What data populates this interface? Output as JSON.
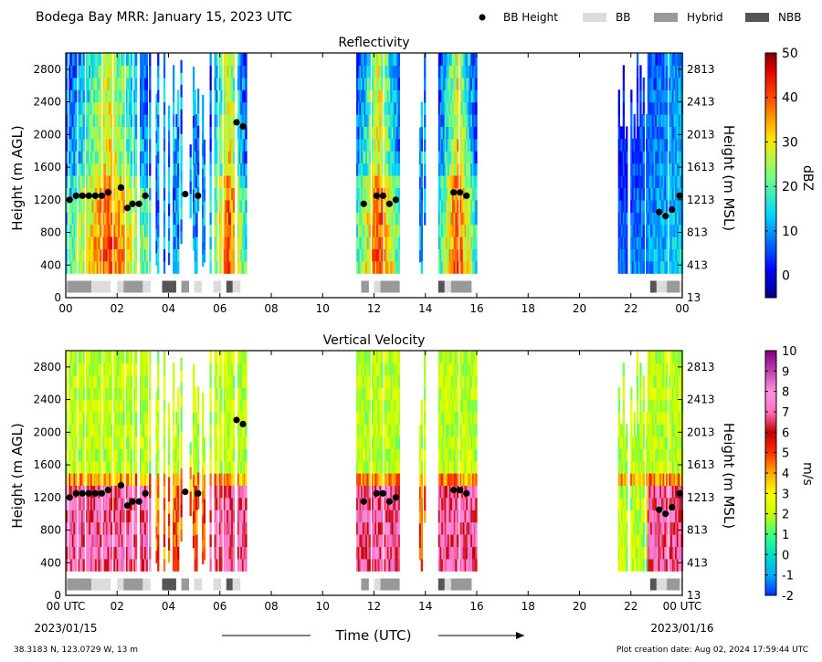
{
  "figure": {
    "title": "Bodega Bay MRR:  January 15, 2023 UTC",
    "xlabel": "Time (UTC)",
    "start_date": "2023/01/15",
    "end_date": "2023/01/16",
    "location": "38.3183 N, 123.0729 W, 13 m",
    "creation": "Plot creation date: Aug 02, 2024 17:59:44 UTC",
    "legend": [
      {
        "label": "BB Height",
        "kind": "dot",
        "color": "#000000"
      },
      {
        "label": "BB",
        "kind": "rect",
        "color": "#dcdcdc"
      },
      {
        "label": "Hybrid",
        "kind": "rect",
        "color": "#999999"
      },
      {
        "label": "NBB",
        "kind": "rect",
        "color": "#555555"
      }
    ]
  },
  "chart_data": [
    {
      "type": "heatmap",
      "title": "Reflectivity",
      "ylabel": "Height (m AGL)",
      "ylabel_right": "Height (m MSL)",
      "colorbar_label": "dBZ",
      "colorbar_range": [
        -5,
        50
      ],
      "colorbar_ticks": [
        0,
        10,
        20,
        30,
        40,
        50
      ],
      "colormap": "jet",
      "xlim": [
        0,
        24
      ],
      "ylim": [
        0,
        3000
      ],
      "x_ticks": [
        "00",
        "02",
        "04",
        "06",
        "08",
        "10",
        "12",
        "14",
        "16",
        "18",
        "20",
        "22",
        "00"
      ],
      "y_ticks": [
        0,
        400,
        800,
        1200,
        1600,
        2000,
        2400,
        2800
      ],
      "y_ticks_right": [
        "13",
        "413",
        "813",
        "1213",
        "1613",
        "2013",
        "2413",
        "2813"
      ],
      "bb_height": [
        [
          0.15,
          1200
        ],
        [
          0.4,
          1250
        ],
        [
          0.65,
          1250
        ],
        [
          0.9,
          1250
        ],
        [
          1.15,
          1250
        ],
        [
          1.4,
          1250
        ],
        [
          1.65,
          1290
        ],
        [
          2.15,
          1350
        ],
        [
          2.4,
          1100
        ],
        [
          2.6,
          1150
        ],
        [
          2.85,
          1150
        ],
        [
          3.1,
          1250
        ],
        [
          4.65,
          1270
        ],
        [
          5.15,
          1250
        ],
        [
          6.65,
          2150
        ],
        [
          6.9,
          2100
        ],
        [
          11.6,
          1150
        ],
        [
          12.1,
          1250
        ],
        [
          12.35,
          1250
        ],
        [
          12.6,
          1150
        ],
        [
          12.85,
          1200
        ],
        [
          15.1,
          1290
        ],
        [
          15.35,
          1290
        ],
        [
          15.6,
          1250
        ],
        [
          23.1,
          1050
        ],
        [
          23.35,
          1000
        ],
        [
          23.6,
          1080
        ],
        [
          23.9,
          1250
        ]
      ],
      "classification": [
        {
          "start": 0.05,
          "end": 1.0,
          "class": "Hybrid"
        },
        {
          "start": 1.0,
          "end": 1.75,
          "class": "BB"
        },
        {
          "start": 2.0,
          "end": 2.25,
          "class": "BB"
        },
        {
          "start": 2.25,
          "end": 3.0,
          "class": "Hybrid"
        },
        {
          "start": 3.0,
          "end": 3.3,
          "class": "BB"
        },
        {
          "start": 3.75,
          "end": 4.3,
          "class": "NBB"
        },
        {
          "start": 4.5,
          "end": 4.8,
          "class": "Hybrid"
        },
        {
          "start": 5.0,
          "end": 5.3,
          "class": "BB"
        },
        {
          "start": 5.75,
          "end": 6.05,
          "class": "BB"
        },
        {
          "start": 6.25,
          "end": 6.5,
          "class": "NBB"
        },
        {
          "start": 6.5,
          "end": 6.8,
          "class": "BB"
        },
        {
          "start": 11.5,
          "end": 11.8,
          "class": "Hybrid"
        },
        {
          "start": 12.0,
          "end": 12.25,
          "class": "BB"
        },
        {
          "start": 12.25,
          "end": 13.0,
          "class": "Hybrid"
        },
        {
          "start": 14.5,
          "end": 14.75,
          "class": "NBB"
        },
        {
          "start": 14.75,
          "end": 15.0,
          "class": "BB"
        },
        {
          "start": 15.0,
          "end": 15.8,
          "class": "Hybrid"
        },
        {
          "start": 22.75,
          "end": 23.0,
          "class": "NBB"
        },
        {
          "start": 23.0,
          "end": 23.4,
          "class": "BB"
        },
        {
          "start": 23.4,
          "end": 23.9,
          "class": "Hybrid"
        },
        {
          "start": 23.9,
          "end": 24.0,
          "class": "BB"
        }
      ],
      "precip_periods": [
        {
          "start": 0.0,
          "end": 3.3,
          "profile": "core"
        },
        {
          "start": 3.5,
          "end": 5.4,
          "profile": "weak"
        },
        {
          "start": 5.6,
          "end": 7.0,
          "profile": "core"
        },
        {
          "start": 11.25,
          "end": 13.05,
          "profile": "core"
        },
        {
          "start": 13.7,
          "end": 14.1,
          "profile": "weak"
        },
        {
          "start": 14.5,
          "end": 15.95,
          "profile": "core"
        },
        {
          "start": 21.5,
          "end": 24.0,
          "profile": "tail"
        }
      ]
    },
    {
      "type": "heatmap",
      "title": "Vertical Velocity",
      "ylabel": "Height (m AGL)",
      "ylabel_right": "Height (m MSL)",
      "colorbar_label": "m/s",
      "colorbar_range": [
        -2,
        10
      ],
      "colorbar_ticks": [
        -2,
        -1,
        0,
        1,
        2,
        3,
        4,
        5,
        6,
        7,
        8,
        9,
        10
      ],
      "colormap": "velocity",
      "xlim": [
        0,
        24
      ],
      "ylim": [
        0,
        3000
      ],
      "x_ticks": [
        "00 UTC",
        "02",
        "04",
        "06",
        "08",
        "10",
        "12",
        "14",
        "16",
        "18",
        "20",
        "22",
        "00 UTC"
      ],
      "y_ticks": [
        0,
        400,
        800,
        1200,
        1600,
        2000,
        2400,
        2800
      ],
      "y_ticks_right": [
        "13",
        "413",
        "813",
        "1213",
        "1613",
        "2013",
        "2413",
        "2813"
      ],
      "bb_height": [
        [
          0.15,
          1200
        ],
        [
          0.4,
          1250
        ],
        [
          0.65,
          1250
        ],
        [
          0.9,
          1250
        ],
        [
          1.15,
          1250
        ],
        [
          1.4,
          1250
        ],
        [
          1.65,
          1290
        ],
        [
          2.15,
          1350
        ],
        [
          2.4,
          1100
        ],
        [
          2.6,
          1150
        ],
        [
          2.85,
          1150
        ],
        [
          3.1,
          1250
        ],
        [
          4.65,
          1270
        ],
        [
          5.15,
          1250
        ],
        [
          6.65,
          2150
        ],
        [
          6.9,
          2100
        ],
        [
          11.6,
          1150
        ],
        [
          12.1,
          1250
        ],
        [
          12.35,
          1250
        ],
        [
          12.6,
          1150
        ],
        [
          12.85,
          1200
        ],
        [
          15.1,
          1290
        ],
        [
          15.35,
          1290
        ],
        [
          15.6,
          1250
        ],
        [
          23.1,
          1050
        ],
        [
          23.35,
          1000
        ],
        [
          23.6,
          1080
        ],
        [
          23.9,
          1250
        ]
      ],
      "classification": [
        {
          "start": 0.05,
          "end": 1.0,
          "class": "Hybrid"
        },
        {
          "start": 1.0,
          "end": 1.75,
          "class": "BB"
        },
        {
          "start": 2.0,
          "end": 2.25,
          "class": "BB"
        },
        {
          "start": 2.25,
          "end": 3.0,
          "class": "Hybrid"
        },
        {
          "start": 3.0,
          "end": 3.3,
          "class": "BB"
        },
        {
          "start": 3.75,
          "end": 4.3,
          "class": "NBB"
        },
        {
          "start": 4.5,
          "end": 4.8,
          "class": "Hybrid"
        },
        {
          "start": 5.0,
          "end": 5.3,
          "class": "BB"
        },
        {
          "start": 5.75,
          "end": 6.05,
          "class": "BB"
        },
        {
          "start": 6.25,
          "end": 6.5,
          "class": "NBB"
        },
        {
          "start": 6.5,
          "end": 6.8,
          "class": "BB"
        },
        {
          "start": 11.5,
          "end": 11.8,
          "class": "Hybrid"
        },
        {
          "start": 12.0,
          "end": 12.25,
          "class": "BB"
        },
        {
          "start": 12.25,
          "end": 13.0,
          "class": "Hybrid"
        },
        {
          "start": 14.5,
          "end": 14.75,
          "class": "NBB"
        },
        {
          "start": 14.75,
          "end": 15.0,
          "class": "BB"
        },
        {
          "start": 15.0,
          "end": 15.8,
          "class": "Hybrid"
        },
        {
          "start": 22.75,
          "end": 23.0,
          "class": "NBB"
        },
        {
          "start": 23.0,
          "end": 23.4,
          "class": "BB"
        },
        {
          "start": 23.4,
          "end": 23.9,
          "class": "Hybrid"
        },
        {
          "start": 23.9,
          "end": 24.0,
          "class": "BB"
        }
      ],
      "precip_periods": [
        {
          "start": 0.0,
          "end": 3.3,
          "profile": "core"
        },
        {
          "start": 3.5,
          "end": 5.4,
          "profile": "weak"
        },
        {
          "start": 5.6,
          "end": 7.0,
          "profile": "core"
        },
        {
          "start": 11.25,
          "end": 13.05,
          "profile": "core"
        },
        {
          "start": 13.7,
          "end": 14.1,
          "profile": "weak"
        },
        {
          "start": 14.5,
          "end": 15.95,
          "profile": "core"
        },
        {
          "start": 21.5,
          "end": 24.0,
          "profile": "tail"
        }
      ]
    }
  ]
}
